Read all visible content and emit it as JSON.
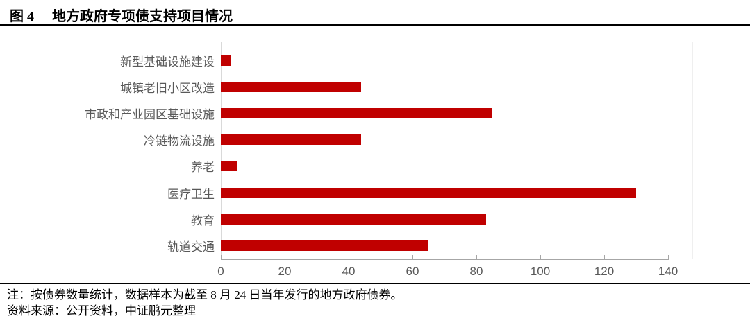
{
  "header": {
    "figure_label": "图 4",
    "title": "地方政府专项债支持项目情况"
  },
  "chart_data": {
    "type": "bar",
    "orientation": "horizontal",
    "title": "地方政府专项债支持项目情况",
    "categories": [
      "新型基础设施建设",
      "城镇老旧小区改造",
      "市政和产业园区基础设施",
      "冷链物流设施",
      "养老",
      "医疗卫生",
      "教育",
      "轨道交通"
    ],
    "values": [
      3,
      44,
      85,
      44,
      5,
      130,
      83,
      65
    ],
    "xlabel": "",
    "ylabel": "",
    "xlim": [
      0,
      140
    ],
    "xticks": [
      0,
      20,
      40,
      60,
      80,
      100,
      120,
      140
    ],
    "grid": false,
    "legend": "none",
    "bar_color": "#c00000",
    "axis_text_color": "#595959"
  },
  "footer": {
    "note": "注：按债券数量统计，数据样本为截至 8 月 24 日当年发行的地方政府债券。",
    "source": "资料来源：公开资料，中证鹏元整理"
  }
}
